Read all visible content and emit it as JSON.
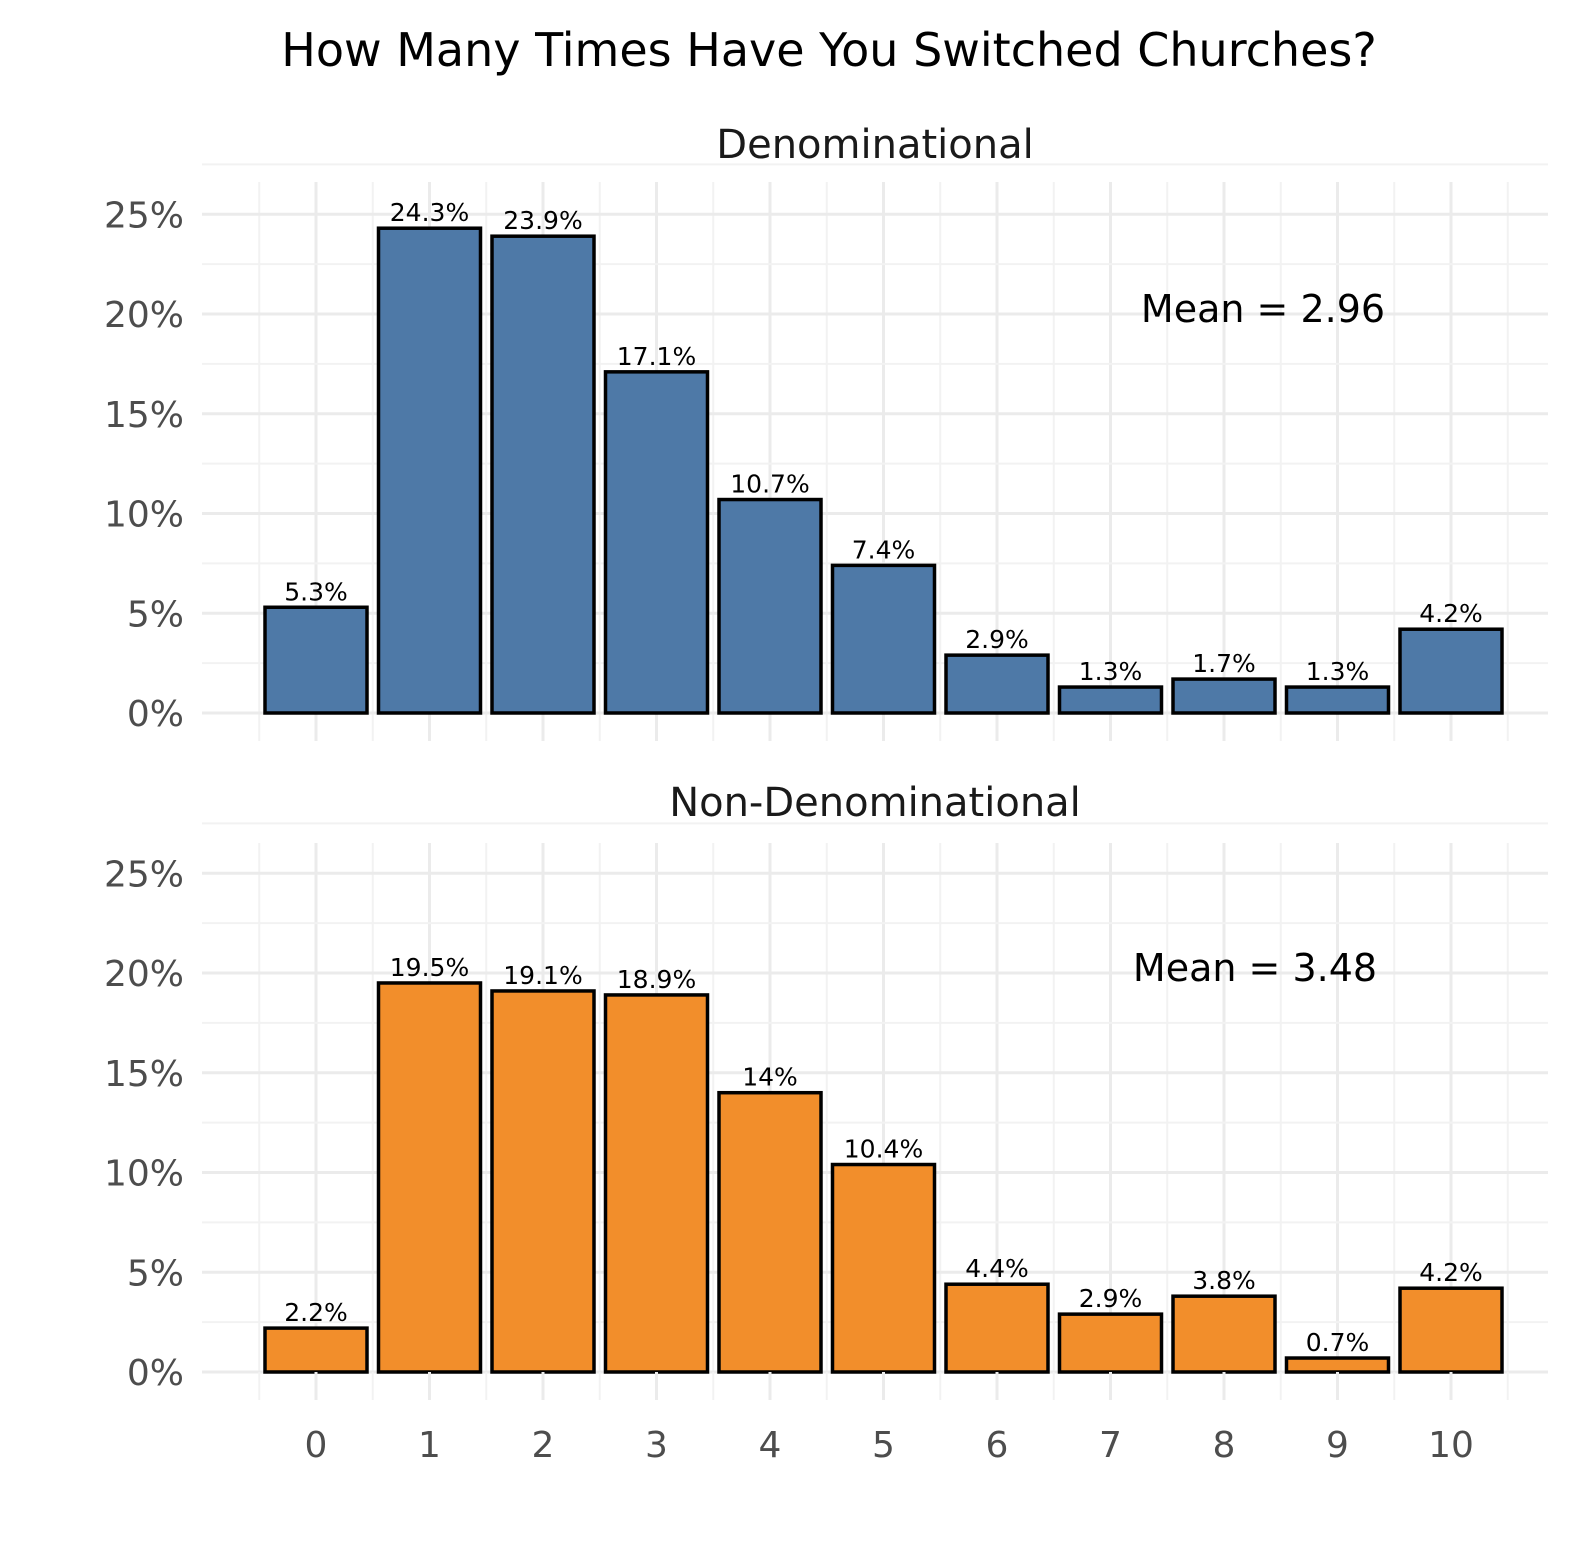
{
  "chart_data": {
    "type": "bar",
    "title": "How Many Times Have You Switched Churches?",
    "xlabel": "",
    "ylabel": "",
    "categories": [
      "0",
      "1",
      "2",
      "3",
      "4",
      "5",
      "6",
      "7",
      "8",
      "9",
      "10"
    ],
    "ylim": [
      0,
      25
    ],
    "y_ticks": [
      "0%",
      "5%",
      "10%",
      "15%",
      "20%",
      "25%"
    ],
    "grid": true,
    "panels": [
      {
        "name": "Denominational",
        "color": "#4e79a7",
        "values": [
          5.3,
          24.3,
          23.9,
          17.1,
          10.7,
          7.4,
          2.9,
          1.3,
          1.7,
          1.3,
          4.2
        ],
        "labels": [
          "5.3%",
          "24.3%",
          "23.9%",
          "17.1%",
          "10.7%",
          "7.4%",
          "2.9%",
          "1.3%",
          "1.7%",
          "1.3%",
          "4.2%"
        ],
        "annotation": "Mean = 2.96"
      },
      {
        "name": "Non-Denominational",
        "color": "#f28e2b",
        "values": [
          2.2,
          19.5,
          19.1,
          18.9,
          14,
          10.4,
          4.4,
          2.9,
          3.8,
          0.7,
          4.2
        ],
        "labels": [
          "2.2%",
          "19.5%",
          "19.1%",
          "18.9%",
          "14%",
          "10.4%",
          "4.4%",
          "2.9%",
          "3.8%",
          "0.7%",
          "4.2%"
        ],
        "annotation": "Mean = 3.48"
      }
    ]
  }
}
